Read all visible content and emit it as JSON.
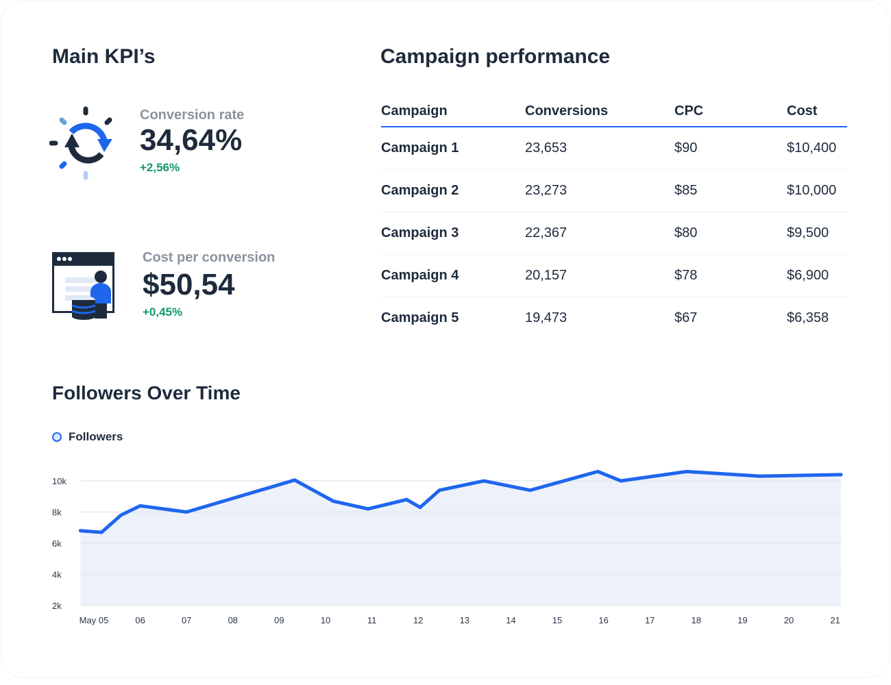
{
  "kpis": {
    "title": "Main KPI’s",
    "items": [
      {
        "label": "Conversion rate",
        "value": "34,64%",
        "delta": "+2,56%",
        "icon": "refresh-cycle-icon"
      },
      {
        "label": "Cost per conversion",
        "value": "$50,54",
        "delta": "+0,45%",
        "icon": "browser-user-database-icon"
      }
    ]
  },
  "campaigns": {
    "title": "Campaign performance",
    "columns": [
      "Campaign",
      "Conversions",
      "CPC",
      "Cost"
    ],
    "rows": [
      [
        "Campaign 1",
        "23,653",
        "$90",
        "$10,400"
      ],
      [
        "Campaign 2",
        "23,273",
        "$85",
        "$10,000"
      ],
      [
        "Campaign 3",
        "22,367",
        "$80",
        "$9,500"
      ],
      [
        "Campaign 4",
        "20,157",
        "$78",
        "$6,900"
      ],
      [
        "Campaign 5",
        "19,473",
        "$67",
        "$6,358"
      ]
    ]
  },
  "colors": {
    "accent": "#1f66ee",
    "positive": "#0f9a64",
    "area": "#edf1fa",
    "text": "#1e2b3c"
  },
  "chart_data": {
    "type": "area",
    "title": "Followers Over Time",
    "legend": [
      "Followers"
    ],
    "legend_position": "top-left",
    "grid": true,
    "ylim": [
      2000,
      10000
    ],
    "y_ticks": [
      "2k",
      "4k",
      "6k",
      "8k",
      "10k"
    ],
    "x_ticks": [
      "May 05",
      "06",
      "07",
      "08",
      "09",
      "10",
      "11",
      "12",
      "13",
      "14",
      "15",
      "16",
      "17",
      "18",
      "19",
      "20",
      "21"
    ],
    "series": [
      {
        "name": "Followers",
        "points": [
          [
            "05-04 17:00",
            6800
          ],
          [
            "05-05 04:00",
            6700
          ],
          [
            "05-05 14:00",
            7800
          ],
          [
            "05-06 00:00",
            8400
          ],
          [
            "05-07 00:00",
            8000
          ],
          [
            "05-09 08:00",
            10050
          ],
          [
            "05-10 04:00",
            8700
          ],
          [
            "05-10 22:00",
            8200
          ],
          [
            "05-11 18:00",
            8800
          ],
          [
            "05-12 01:00",
            8300
          ],
          [
            "05-12 11:00",
            9400
          ],
          [
            "05-13 10:00",
            10000
          ],
          [
            "05-14 10:00",
            9400
          ],
          [
            "05-15 21:00",
            10600
          ],
          [
            "05-16 09:00",
            10000
          ],
          [
            "05-17 19:00",
            10600
          ],
          [
            "05-19 09:00",
            10300
          ],
          [
            "05-21 03:00",
            10400
          ]
        ]
      }
    ]
  }
}
